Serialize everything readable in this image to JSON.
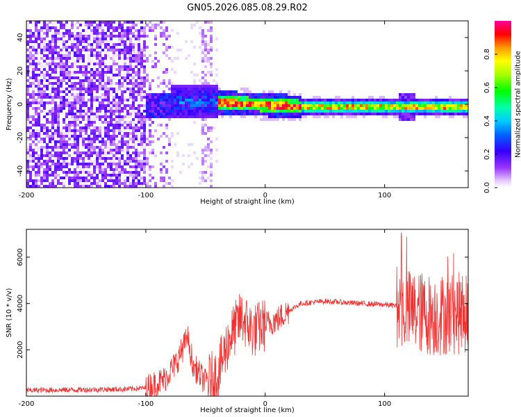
{
  "figure_title": "GN05.2026.085.08.29.R02",
  "chart_data": [
    {
      "type": "heatmap",
      "title": "",
      "xlabel": "Height of straight line (km)",
      "ylabel": "Frequency (Hz)",
      "xlim": [
        -200,
        170
      ],
      "ylim": [
        -50,
        50
      ],
      "x_ticks": [
        -200,
        -100,
        0,
        100
      ],
      "y_ticks": [
        -40,
        -20,
        0,
        20,
        40
      ],
      "colorbar": {
        "label": "Normalized spectral amplitude",
        "range": [
          0,
          1
        ],
        "ticks": [
          0.0,
          0.2,
          0.4,
          0.6,
          0.8
        ],
        "colormap": "rainbow (white-violet-blue-cyan-green-yellow-red-magenta)"
      },
      "description_points": [
        {
          "x_range": [
            -200,
            -100
          ],
          "freq_range": [
            -50,
            50
          ],
          "amplitude": "low, noisy"
        },
        {
          "x_range": [
            -100,
            -40
          ],
          "freq_range": [
            -8,
            10
          ],
          "amplitude": "0.2-0.4"
        },
        {
          "x_range": [
            -40,
            30
          ],
          "freq_center": 2,
          "amplitude": "up to 1.0"
        },
        {
          "x_range": [
            30,
            170
          ],
          "freq_center": -1,
          "amplitude": "0.5-1.0"
        }
      ]
    },
    {
      "type": "line",
      "title": "",
      "xlabel": "Height of straight line (km)",
      "ylabel": "SNR (10 * v/v)",
      "xlim": [
        -200,
        170
      ],
      "ylim": [
        0,
        7200
      ],
      "x_ticks": [
        -200,
        -100,
        0,
        100
      ],
      "y_ticks": [
        2000,
        4000,
        6000
      ],
      "series": [
        {
          "color": "#ee3333",
          "envelope": [
            {
              "x": -200,
              "y": 250
            },
            {
              "x": -120,
              "y": 300
            },
            {
              "x": -100,
              "y": 350
            },
            {
              "x": -85,
              "y": 700
            },
            {
              "x": -75,
              "y": 1400
            },
            {
              "x": -65,
              "y": 2500
            },
            {
              "x": -60,
              "y": 1300
            },
            {
              "x": -50,
              "y": 600
            },
            {
              "x": -40,
              "y": 900
            },
            {
              "x": -30,
              "y": 2500
            },
            {
              "x": -20,
              "y": 3400
            },
            {
              "x": -10,
              "y": 2800
            },
            {
              "x": 0,
              "y": 3100
            },
            {
              "x": 10,
              "y": 3300
            },
            {
              "x": 20,
              "y": 3700
            },
            {
              "x": 30,
              "y": 4000
            },
            {
              "x": 50,
              "y": 4100
            },
            {
              "x": 80,
              "y": 4000
            },
            {
              "x": 100,
              "y": 3950
            },
            {
              "x": 110,
              "y": 3900
            },
            {
              "x": 120,
              "y": 3700
            },
            {
              "x": 140,
              "y": 3500
            },
            {
              "x": 170,
              "y": 3600
            }
          ]
        }
      ]
    }
  ]
}
